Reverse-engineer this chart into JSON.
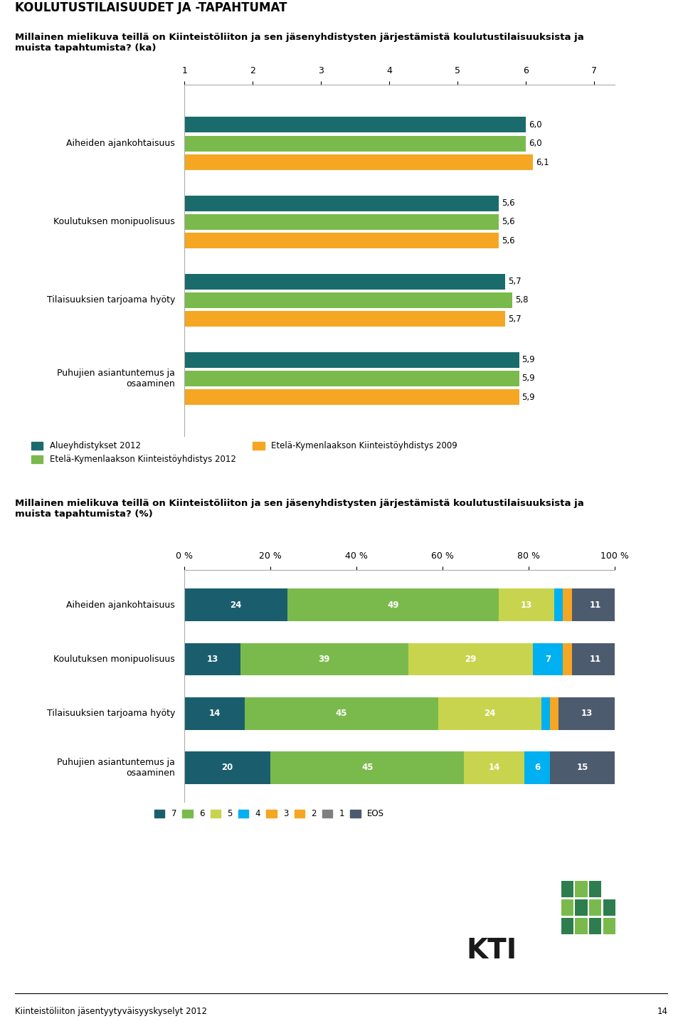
{
  "title_main": "KOULUTUSTILAISUUDET JA -TAPAHTUMAT",
  "subtitle1": "Millainen mielikuva teillä on Kiinteistöliiton ja sen jäsenyhdistysten järjestämistä koulutustilaisuuksista ja\nmuista tapahtumista? (ka)",
  "subtitle2": "Millainen mielikuva teillä on Kiinteistöliiton ja sen jäsenyhdistysten järjestämistä koulutustilaisuuksista ja\nmuista tapahtumista? (%)",
  "bar1_categories": [
    "Aiheiden ajankohtaisuus",
    "Koulutuksen monipuolisuus",
    "Tilaisuuksien tarjoama hyöty",
    "Puhujien asiantuntemus ja\nosaaminen"
  ],
  "bar1_series": [
    {
      "label": "Alueyhdistykset 2012",
      "color": "#1a6b6b",
      "values": [
        6.0,
        5.6,
        5.7,
        5.9
      ]
    },
    {
      "label": "Etelä-Kymenlaakson Kiinteistöyhdistys 2012",
      "color": "#7aba4c",
      "values": [
        6.0,
        5.6,
        5.8,
        5.9
      ]
    },
    {
      "label": "Etelä-Kymenlaakson Kiinteistöyhdistys 2009",
      "color": "#f5a623",
      "values": [
        6.1,
        5.6,
        5.7,
        5.9
      ]
    }
  ],
  "bar1_xticks": [
    1,
    2,
    3,
    4,
    5,
    6,
    7
  ],
  "bar2_categories": [
    "Aiheiden ajankohtaisuus",
    "Koulutuksen monipuolisuus",
    "Tilaisuuksien tarjoama hyöty",
    "Puhujien asiantuntemus ja\nosaaminen"
  ],
  "bar2_segments": [
    {
      "label": "7",
      "color": "#1a5e6e",
      "values": [
        24,
        13,
        14,
        20
      ]
    },
    {
      "label": "6",
      "color": "#7aba4c",
      "values": [
        49,
        39,
        45,
        45
      ]
    },
    {
      "label": "5",
      "color": "#c8d44e",
      "values": [
        13,
        29,
        24,
        14
      ]
    },
    {
      "label": "4",
      "color": "#00b0f0",
      "values": [
        2,
        7,
        2,
        6
      ]
    },
    {
      "label": "3",
      "color": "#f5a623",
      "values": [
        0,
        2,
        0,
        0
      ]
    },
    {
      "label": "2",
      "color": "#f5a623",
      "values": [
        2,
        0,
        2,
        0
      ]
    },
    {
      "label": "1",
      "color": "#7f7f7f",
      "values": [
        0,
        0,
        0,
        0
      ]
    },
    {
      "label": "EOS",
      "color": "#4d5b6e",
      "values": [
        11,
        11,
        13,
        15
      ]
    }
  ],
  "bar2_xticks": [
    0,
    20,
    40,
    60,
    80,
    100
  ],
  "bar2_xtick_labels": [
    "0 %",
    "20 %",
    "40 %",
    "60 %",
    "80 %",
    "100 %"
  ]
}
